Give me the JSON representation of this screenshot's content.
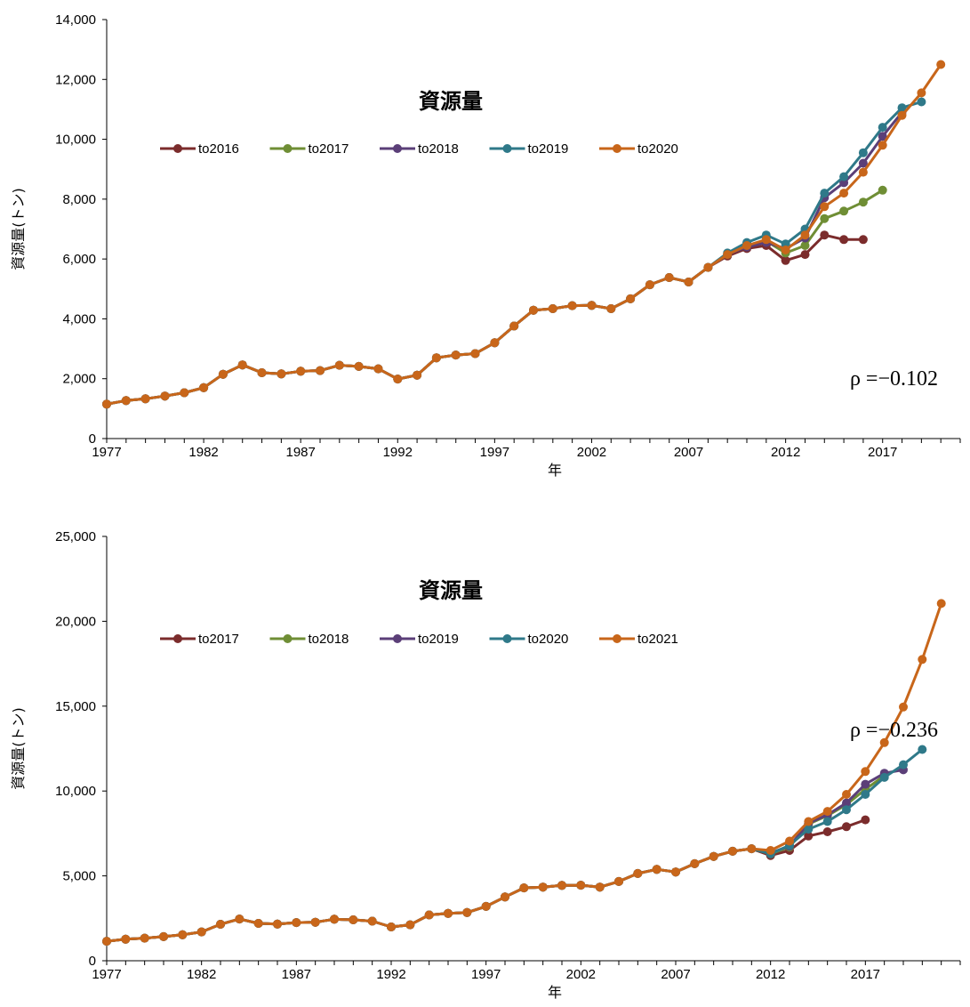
{
  "chart_data": [
    {
      "type": "line",
      "title": "資源量",
      "xlabel": "年",
      "ylabel": "資源量(トン)",
      "ylim": [
        0,
        14000
      ],
      "yticks": [
        "0",
        "2,000",
        "4,000",
        "6,000",
        "8,000",
        "10,000",
        "12,000",
        "14,000"
      ],
      "xticks": [
        "1977",
        "1982",
        "1987",
        "1992",
        "1997",
        "2002",
        "2007",
        "2012",
        "2017"
      ],
      "xlim": [
        1977,
        2021
      ],
      "legend_position": "top-left",
      "annotation": "ρ =−0.102",
      "x_start": 1977,
      "base": [
        1150,
        1270,
        1330,
        1420,
        1530,
        1700,
        2150,
        2460,
        2200,
        2160,
        2250,
        2270,
        2450,
        2410,
        2330,
        1990,
        2120,
        2700,
        2790,
        2840,
        3200,
        3760,
        4290,
        4340,
        4440,
        4450,
        4340,
        4670,
        5140,
        5380,
        5230,
        5720
      ],
      "series": [
        {
          "name": "to2016",
          "color": "#7B2C2C",
          "tail": [
            6100,
            6350,
            6450,
            5950,
            6150,
            6800,
            6650,
            6650
          ]
        },
        {
          "name": "to2017",
          "color": "#6F8E35",
          "tail": [
            6150,
            6450,
            6600,
            6200,
            6450,
            7350,
            7600,
            7900,
            8300
          ]
        },
        {
          "name": "to2018",
          "color": "#5B3F78",
          "tail": [
            6150,
            6400,
            6550,
            6350,
            6700,
            8050,
            8550,
            9200,
            10100,
            10900
          ]
        },
        {
          "name": "to2019",
          "color": "#2F7989",
          "tail": [
            6200,
            6550,
            6800,
            6500,
            7000,
            8200,
            8750,
            9550,
            10400,
            11050,
            11250
          ]
        },
        {
          "name": "to2020",
          "color": "#C8661A",
          "tail": [
            6150,
            6450,
            6650,
            6300,
            6800,
            7750,
            8200,
            8900,
            9800,
            10800,
            11550,
            12500
          ]
        }
      ]
    },
    {
      "type": "line",
      "title": "資源量",
      "xlabel": "年",
      "ylabel": "資源量(トン)",
      "ylim": [
        0,
        25000
      ],
      "yticks": [
        "0",
        "5,000",
        "10,000",
        "15,000",
        "20,000",
        "25,000"
      ],
      "xticks": [
        "1977",
        "1982",
        "1987",
        "1992",
        "1997",
        "2002",
        "2007",
        "2012",
        "2017"
      ],
      "xlim": [
        1977,
        2022
      ],
      "legend_position": "top-left",
      "annotation": "ρ =−0.236",
      "x_start": 1977,
      "base": [
        1150,
        1270,
        1330,
        1420,
        1530,
        1700,
        2150,
        2460,
        2200,
        2160,
        2250,
        2270,
        2450,
        2410,
        2330,
        1990,
        2120,
        2700,
        2790,
        2840,
        3200,
        3760,
        4290,
        4340,
        4440,
        4450,
        4340,
        4670,
        5140,
        5380,
        5230,
        5720,
        6150,
        6450,
        6600
      ],
      "series": [
        {
          "name": "to2017",
          "color": "#7B2C2C",
          "tail": [
            6200,
            6500,
            7350,
            7600,
            7900,
            8300
          ]
        },
        {
          "name": "to2018",
          "color": "#6F8E35",
          "tail": [
            6300,
            6700,
            8050,
            8550,
            9200,
            10100,
            10900
          ]
        },
        {
          "name": "to2019",
          "color": "#5B3F78",
          "tail": [
            6350,
            6750,
            8100,
            8600,
            9300,
            10400,
            11050,
            11250
          ]
        },
        {
          "name": "to2020",
          "color": "#2F7989",
          "tail": [
            6300,
            6800,
            7750,
            8200,
            8900,
            9800,
            10800,
            11550,
            12450
          ]
        },
        {
          "name": "to2021",
          "color": "#C8661A",
          "tail": [
            6500,
            7050,
            8200,
            8800,
            9800,
            11150,
            12850,
            14950,
            17750,
            21050
          ]
        }
      ]
    }
  ]
}
